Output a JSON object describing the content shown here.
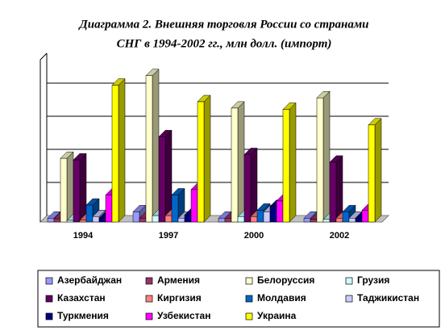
{
  "chart_data": {
    "type": "bar3d",
    "title": [
      "Диаграмма 2. Внешняя торговля России со странами",
      "СНГ в 1994-2002 гг., млн долл. (импорт)"
    ],
    "categories": [
      "1994",
      "1997",
      "2000",
      "2002"
    ],
    "ylim": [
      0,
      5100
    ],
    "series": [
      {
        "name": "Азербайджан",
        "color": "#9999ff",
        "values": [
          120,
          320,
          120,
          120
        ]
      },
      {
        "name": "Армения",
        "color": "#993366",
        "values": [
          100,
          120,
          120,
          80
        ]
      },
      {
        "name": "Белоруссия",
        "color": "#ffffcc",
        "values": [
          2000,
          4600,
          3580,
          3900
        ]
      },
      {
        "name": "Грузия",
        "color": "#ccffff",
        "values": [
          50,
          200,
          170,
          80
        ]
      },
      {
        "name": "Казахстан",
        "color": "#660066",
        "values": [
          1950,
          2680,
          2120,
          1880
        ]
      },
      {
        "name": "Киргизия",
        "color": "#ff8080",
        "values": [
          60,
          200,
          170,
          120
        ]
      },
      {
        "name": "Молдавия",
        "color": "#0066cc",
        "values": [
          530,
          850,
          370,
          320
        ]
      },
      {
        "name": "Таджикистан",
        "color": "#ccccff",
        "values": [
          170,
          120,
          320,
          120
        ]
      },
      {
        "name": "Туркмения",
        "color": "#000080",
        "values": [
          120,
          220,
          490,
          120
        ]
      },
      {
        "name": "Узбекистан",
        "color": "#ff00ff",
        "values": [
          850,
          1020,
          660,
          370
        ]
      },
      {
        "name": "Украина",
        "color": "#ffff00",
        "values": [
          4300,
          3780,
          3540,
          3050
        ]
      }
    ]
  }
}
